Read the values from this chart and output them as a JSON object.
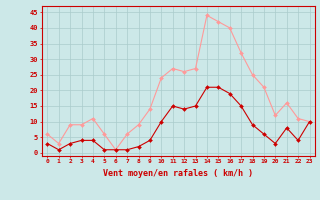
{
  "x": [
    0,
    1,
    2,
    3,
    4,
    5,
    6,
    7,
    8,
    9,
    10,
    11,
    12,
    13,
    14,
    15,
    16,
    17,
    18,
    19,
    20,
    21,
    22,
    23
  ],
  "wind_avg": [
    3,
    1,
    3,
    4,
    4,
    1,
    1,
    1,
    2,
    4,
    10,
    15,
    14,
    15,
    21,
    21,
    19,
    15,
    9,
    6,
    3,
    8,
    4,
    10
  ],
  "wind_gust": [
    6,
    3,
    9,
    9,
    11,
    6,
    1,
    6,
    9,
    14,
    24,
    27,
    26,
    27,
    44,
    42,
    40,
    32,
    25,
    21,
    12,
    16,
    11,
    10
  ],
  "avg_color": "#cc0000",
  "gust_color": "#ff9999",
  "bg_color": "#cce8e8",
  "grid_color": "#aacccc",
  "xlabel": "Vent moyen/en rafales ( km/h )",
  "xlabel_color": "#cc0000",
  "yticks": [
    0,
    5,
    10,
    15,
    20,
    25,
    30,
    35,
    40,
    45
  ],
  "ylim": [
    -1,
    47
  ],
  "xlim": [
    -0.5,
    23.5
  ]
}
